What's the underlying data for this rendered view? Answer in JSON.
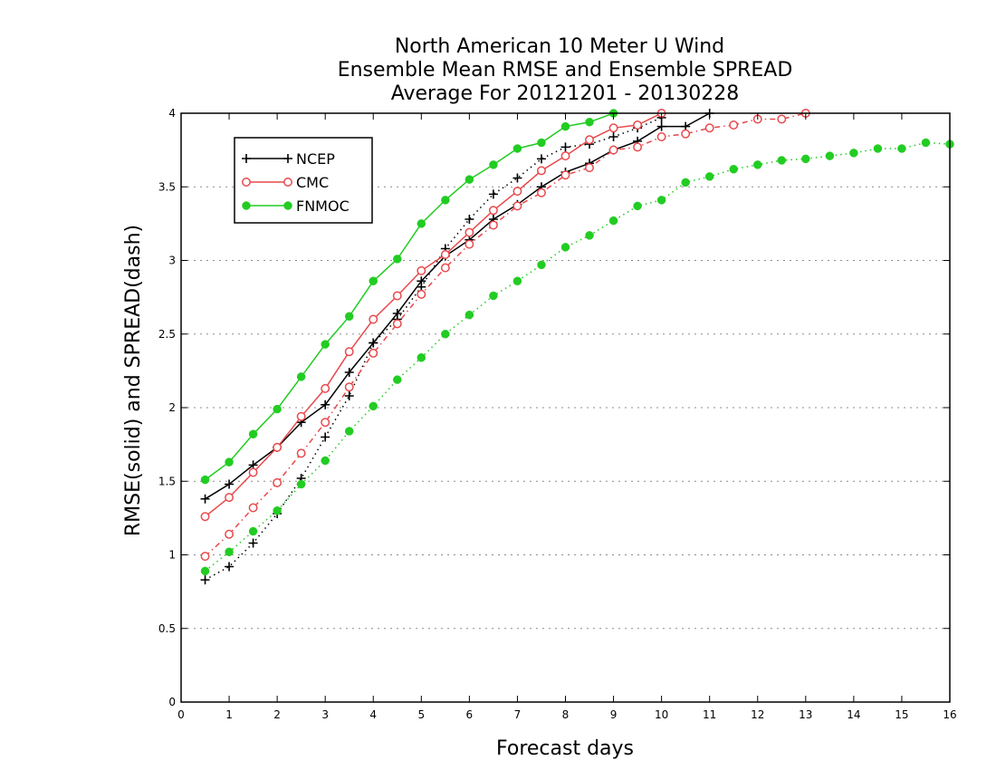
{
  "chart_data": {
    "type": "line",
    "title": [
      "North American 10 Meter U Wind",
      "Ensemble Mean RMSE and Ensemble SPREAD",
      "Average For 20121201 - 20130228"
    ],
    "xlabel": "Forecast days",
    "ylabel": "RMSE(solid) and SPREAD(dash)",
    "xlim": [
      0,
      16
    ],
    "ylim": [
      0,
      4
    ],
    "x_ticks": [
      0,
      1,
      2,
      3,
      4,
      5,
      6,
      7,
      8,
      9,
      10,
      11,
      12,
      13,
      14,
      15,
      16
    ],
    "x_tick_labels": [
      "0",
      "1",
      "2",
      "3",
      "4",
      "5",
      "6",
      "7",
      "8",
      "9",
      "10",
      "11",
      "12",
      "13",
      "14",
      "15",
      "16"
    ],
    "y_ticks": [
      0,
      0.5,
      1,
      1.5,
      2,
      2.5,
      3,
      3.5,
      4
    ],
    "y_tick_labels": [
      "0",
      "0.5",
      "1",
      "1.5",
      "2",
      "2.5",
      "3",
      "3.5",
      "4"
    ],
    "grid": "horizontal dotted",
    "legend_position": "top-left",
    "series": [
      {
        "name": "NCEP",
        "metric": "RMSE",
        "line": "solid",
        "marker": "plus",
        "color": "#000000",
        "x": [
          0.5,
          1,
          1.5,
          2,
          2.5,
          3,
          3.5,
          4,
          4.5,
          5,
          5.5,
          6,
          6.5,
          7,
          7.5,
          8,
          8.5,
          9,
          9.5,
          10,
          10.5,
          11
        ],
        "y": [
          1.38,
          1.48,
          1.61,
          1.73,
          1.9,
          2.02,
          2.24,
          2.44,
          2.64,
          2.86,
          3.03,
          3.14,
          3.28,
          3.38,
          3.5,
          3.6,
          3.66,
          3.75,
          3.81,
          3.91,
          3.91,
          4.0
        ]
      },
      {
        "name": "NCEP",
        "metric": "SPREAD",
        "line": "dotted",
        "marker": "plus",
        "color": "#000000",
        "x": [
          0.5,
          1,
          1.5,
          2,
          2.5,
          3,
          3.5,
          4,
          4.5,
          5,
          5.5,
          6,
          6.5,
          7,
          7.5,
          8,
          8.5,
          9,
          9.5,
          10
        ],
        "y": [
          0.83,
          0.92,
          1.08,
          1.28,
          1.52,
          1.8,
          2.08,
          2.44,
          2.6,
          2.82,
          3.08,
          3.28,
          3.45,
          3.56,
          3.69,
          3.77,
          3.79,
          3.84,
          3.9,
          3.97
        ]
      },
      {
        "name": "CMC",
        "metric": "RMSE",
        "line": "solid",
        "marker": "open-circle",
        "color": "#e8484b",
        "x": [
          0.5,
          1,
          1.5,
          2,
          2.5,
          3,
          3.5,
          4,
          4.5,
          5,
          5.5,
          6,
          6.5,
          7,
          7.5,
          8,
          8.5,
          9,
          9.5,
          10
        ],
        "y": [
          1.26,
          1.39,
          1.56,
          1.73,
          1.94,
          2.13,
          2.38,
          2.6,
          2.76,
          2.93,
          3.04,
          3.19,
          3.34,
          3.47,
          3.61,
          3.71,
          3.82,
          3.9,
          3.92,
          4.0
        ]
      },
      {
        "name": "CMC",
        "metric": "SPREAD",
        "line": "dash-dot",
        "marker": "open-circle",
        "color": "#e8484b",
        "x": [
          0.5,
          1,
          1.5,
          2,
          2.5,
          3,
          3.5,
          4,
          4.5,
          5,
          5.5,
          6,
          6.5,
          7,
          7.5,
          8,
          8.5,
          9,
          9.5,
          10,
          10.5,
          11,
          11.5,
          12,
          12.5,
          13
        ],
        "y": [
          0.99,
          1.14,
          1.32,
          1.49,
          1.69,
          1.9,
          2.14,
          2.37,
          2.57,
          2.77,
          2.95,
          3.11,
          3.24,
          3.37,
          3.46,
          3.58,
          3.63,
          3.75,
          3.77,
          3.84,
          3.86,
          3.9,
          3.92,
          3.96,
          3.96,
          4.0
        ]
      },
      {
        "name": "FNMOC",
        "metric": "RMSE",
        "line": "solid",
        "marker": "filled-circle",
        "color": "#22cc22",
        "x": [
          0.5,
          1,
          1.5,
          2,
          2.5,
          3,
          3.5,
          4,
          4.5,
          5,
          5.5,
          6,
          6.5,
          7,
          7.5,
          8,
          8.5,
          9
        ],
        "y": [
          1.51,
          1.63,
          1.82,
          1.99,
          2.21,
          2.43,
          2.62,
          2.86,
          3.01,
          3.25,
          3.41,
          3.55,
          3.65,
          3.76,
          3.8,
          3.91,
          3.94,
          4.0
        ]
      },
      {
        "name": "FNMOC",
        "metric": "SPREAD",
        "line": "dotted",
        "marker": "filled-circle",
        "color": "#22cc22",
        "x": [
          0.5,
          1,
          1.5,
          2,
          2.5,
          3,
          3.5,
          4,
          4.5,
          5,
          5.5,
          6,
          6.5,
          7,
          7.5,
          8,
          8.5,
          9,
          9.5,
          10,
          10.5,
          11,
          11.5,
          12,
          12.5,
          13,
          13.5,
          14,
          14.5,
          15,
          15.5,
          16
        ],
        "y": [
          0.89,
          1.02,
          1.16,
          1.3,
          1.48,
          1.64,
          1.84,
          2.01,
          2.19,
          2.34,
          2.5,
          2.63,
          2.76,
          2.86,
          2.97,
          3.09,
          3.17,
          3.27,
          3.37,
          3.41,
          3.53,
          3.57,
          3.62,
          3.65,
          3.68,
          3.69,
          3.71,
          3.73,
          3.76,
          3.76,
          3.8,
          3.79
        ]
      }
    ],
    "legend": [
      {
        "label": "NCEP",
        "marker": "plus",
        "color": "#000000"
      },
      {
        "label": "CMC",
        "marker": "open-circle",
        "color": "#e8484b"
      },
      {
        "label": "FNMOC",
        "marker": "filled-circle",
        "color": "#22cc22"
      }
    ]
  }
}
